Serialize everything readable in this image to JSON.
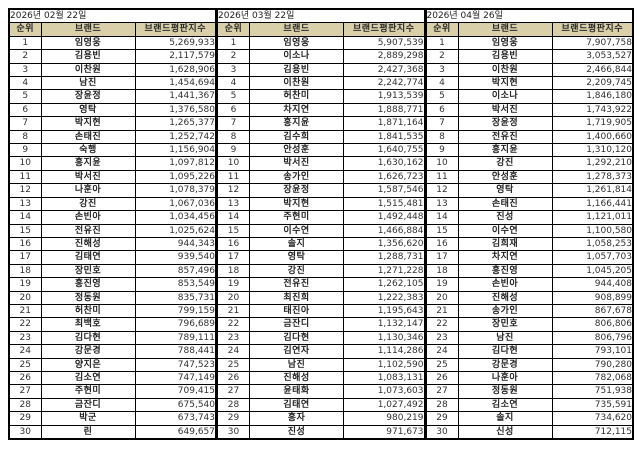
{
  "headers": {
    "rank": "순위",
    "brand": "브랜드",
    "index": "브랜드평판지수"
  },
  "colors": {
    "header_bg": "#d9cfa8",
    "border": "#000000"
  },
  "groups": [
    {
      "date": "2026년 02월 22일",
      "rows": [
        {
          "rank": "1",
          "brand": "임영웅",
          "index": "5,269,933"
        },
        {
          "rank": "2",
          "brand": "김용빈",
          "index": "2,117,579"
        },
        {
          "rank": "3",
          "brand": "이찬원",
          "index": "1,628,906"
        },
        {
          "rank": "4",
          "brand": "남진",
          "index": "1,454,694"
        },
        {
          "rank": "5",
          "brand": "장윤정",
          "index": "1,441,367"
        },
        {
          "rank": "6",
          "brand": "영탁",
          "index": "1,376,580"
        },
        {
          "rank": "7",
          "brand": "박지현",
          "index": "1,265,377"
        },
        {
          "rank": "8",
          "brand": "손태진",
          "index": "1,252,742"
        },
        {
          "rank": "9",
          "brand": "숙행",
          "index": "1,156,904"
        },
        {
          "rank": "10",
          "brand": "홍지윤",
          "index": "1,097,812"
        },
        {
          "rank": "11",
          "brand": "박서진",
          "index": "1,095,226"
        },
        {
          "rank": "12",
          "brand": "나훈아",
          "index": "1,078,379"
        },
        {
          "rank": "13",
          "brand": "강진",
          "index": "1,067,036"
        },
        {
          "rank": "14",
          "brand": "손빈아",
          "index": "1,034,456"
        },
        {
          "rank": "15",
          "brand": "전유진",
          "index": "1,025,624"
        },
        {
          "rank": "16",
          "brand": "진해성",
          "index": "944,343"
        },
        {
          "rank": "17",
          "brand": "김태연",
          "index": "939,540"
        },
        {
          "rank": "18",
          "brand": "장민호",
          "index": "857,496"
        },
        {
          "rank": "19",
          "brand": "홍진영",
          "index": "853,549"
        },
        {
          "rank": "20",
          "brand": "정동원",
          "index": "835,731"
        },
        {
          "rank": "21",
          "brand": "허찬미",
          "index": "799,159"
        },
        {
          "rank": "22",
          "brand": "최백호",
          "index": "796,689"
        },
        {
          "rank": "23",
          "brand": "김다현",
          "index": "789,111"
        },
        {
          "rank": "24",
          "brand": "강문경",
          "index": "788,441"
        },
        {
          "rank": "25",
          "brand": "양지은",
          "index": "747,523"
        },
        {
          "rank": "26",
          "brand": "김소연",
          "index": "747,149"
        },
        {
          "rank": "27",
          "brand": "주현미",
          "index": "709,415"
        },
        {
          "rank": "28",
          "brand": "금잔디",
          "index": "675,540"
        },
        {
          "rank": "29",
          "brand": "박군",
          "index": "673,743"
        },
        {
          "rank": "30",
          "brand": "린",
          "index": "649,657"
        }
      ]
    },
    {
      "date": "2026년 03월 22일",
      "rows": [
        {
          "rank": "1",
          "brand": "임영웅",
          "index": "5,907,539"
        },
        {
          "rank": "2",
          "brand": "이소나",
          "index": "2,889,298"
        },
        {
          "rank": "3",
          "brand": "김용빈",
          "index": "2,427,368"
        },
        {
          "rank": "4",
          "brand": "이찬원",
          "index": "2,242,774"
        },
        {
          "rank": "5",
          "brand": "허찬미",
          "index": "1,913,539"
        },
        {
          "rank": "6",
          "brand": "차지연",
          "index": "1,888,771"
        },
        {
          "rank": "7",
          "brand": "홍지윤",
          "index": "1,871,164"
        },
        {
          "rank": "8",
          "brand": "김수희",
          "index": "1,841,535"
        },
        {
          "rank": "9",
          "brand": "안성훈",
          "index": "1,640,755"
        },
        {
          "rank": "10",
          "brand": "박서진",
          "index": "1,630,162"
        },
        {
          "rank": "11",
          "brand": "송가인",
          "index": "1,626,723"
        },
        {
          "rank": "12",
          "brand": "장윤정",
          "index": "1,587,546"
        },
        {
          "rank": "13",
          "brand": "박지현",
          "index": "1,515,481"
        },
        {
          "rank": "14",
          "brand": "주현미",
          "index": "1,492,448"
        },
        {
          "rank": "15",
          "brand": "이수연",
          "index": "1,466,884"
        },
        {
          "rank": "16",
          "brand": "솔지",
          "index": "1,356,620"
        },
        {
          "rank": "17",
          "brand": "영탁",
          "index": "1,288,731"
        },
        {
          "rank": "18",
          "brand": "강진",
          "index": "1,271,228"
        },
        {
          "rank": "19",
          "brand": "전유진",
          "index": "1,262,105"
        },
        {
          "rank": "20",
          "brand": "최진희",
          "index": "1,222,383"
        },
        {
          "rank": "21",
          "brand": "태진아",
          "index": "1,195,643"
        },
        {
          "rank": "22",
          "brand": "금잔디",
          "index": "1,132,147"
        },
        {
          "rank": "23",
          "brand": "김다현",
          "index": "1,130,346"
        },
        {
          "rank": "24",
          "brand": "김연자",
          "index": "1,114,286"
        },
        {
          "rank": "25",
          "brand": "남진",
          "index": "1,102,590"
        },
        {
          "rank": "26",
          "brand": "진해성",
          "index": "1,083,131"
        },
        {
          "rank": "27",
          "brand": "윤태화",
          "index": "1,073,603"
        },
        {
          "rank": "28",
          "brand": "김태연",
          "index": "1,027,492"
        },
        {
          "rank": "29",
          "brand": "홍자",
          "index": "980,219"
        },
        {
          "rank": "30",
          "brand": "진성",
          "index": "971,673"
        }
      ]
    },
    {
      "date": "2026년 04월 26일",
      "rows": [
        {
          "rank": "1",
          "brand": "임영웅",
          "index": "7,907,758"
        },
        {
          "rank": "2",
          "brand": "김용빈",
          "index": "3,053,527"
        },
        {
          "rank": "3",
          "brand": "이찬원",
          "index": "2,466,844"
        },
        {
          "rank": "4",
          "brand": "박지현",
          "index": "2,209,745"
        },
        {
          "rank": "5",
          "brand": "이소나",
          "index": "1,846,180"
        },
        {
          "rank": "6",
          "brand": "박서진",
          "index": "1,743,922"
        },
        {
          "rank": "7",
          "brand": "장윤정",
          "index": "1,719,905"
        },
        {
          "rank": "8",
          "brand": "전유진",
          "index": "1,400,660"
        },
        {
          "rank": "9",
          "brand": "홍지윤",
          "index": "1,310,120"
        },
        {
          "rank": "10",
          "brand": "강진",
          "index": "1,292,210"
        },
        {
          "rank": "11",
          "brand": "안성훈",
          "index": "1,278,373"
        },
        {
          "rank": "12",
          "brand": "영탁",
          "index": "1,261,814"
        },
        {
          "rank": "13",
          "brand": "손태진",
          "index": "1,166,441"
        },
        {
          "rank": "14",
          "brand": "진성",
          "index": "1,121,011"
        },
        {
          "rank": "15",
          "brand": "이수연",
          "index": "1,100,580"
        },
        {
          "rank": "16",
          "brand": "김희재",
          "index": "1,058,253"
        },
        {
          "rank": "17",
          "brand": "차지연",
          "index": "1,057,703"
        },
        {
          "rank": "18",
          "brand": "홍진영",
          "index": "1,045,205"
        },
        {
          "rank": "19",
          "brand": "손빈아",
          "index": "944,408"
        },
        {
          "rank": "20",
          "brand": "진해성",
          "index": "908,899"
        },
        {
          "rank": "21",
          "brand": "송가인",
          "index": "867,678"
        },
        {
          "rank": "22",
          "brand": "장민호",
          "index": "806,806"
        },
        {
          "rank": "23",
          "brand": "남진",
          "index": "806,796"
        },
        {
          "rank": "24",
          "brand": "김다현",
          "index": "793,101"
        },
        {
          "rank": "25",
          "brand": "강문경",
          "index": "790,280"
        },
        {
          "rank": "26",
          "brand": "나훈아",
          "index": "782,068"
        },
        {
          "rank": "27",
          "brand": "정동원",
          "index": "751,938"
        },
        {
          "rank": "28",
          "brand": "김소연",
          "index": "735,591"
        },
        {
          "rank": "29",
          "brand": "솔지",
          "index": "734,620"
        },
        {
          "rank": "30",
          "brand": "신성",
          "index": "712,115"
        }
      ]
    }
  ]
}
